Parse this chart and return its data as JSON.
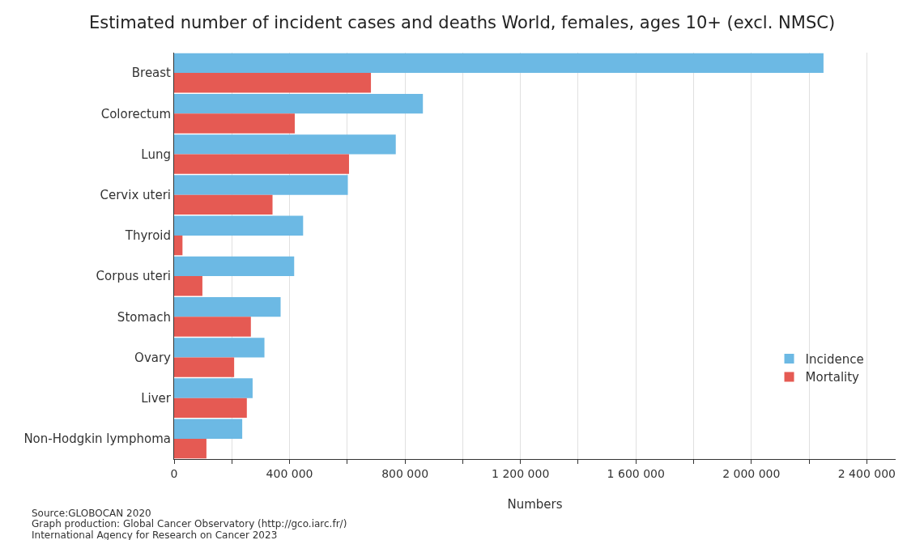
{
  "chart_data": {
    "type": "bar",
    "orientation": "horizontal",
    "title": "Estimated number of incident cases and deaths World, females, ages 10+ (excl. NMSC)",
    "xlabel": "Numbers",
    "categories": [
      "Breast",
      "Colorectum",
      "Lung",
      "Cervix uteri",
      "Thyroid",
      "Corpus uteri",
      "Stomach",
      "Ovary",
      "Liver",
      "Non-Hodgkin lymphoma"
    ],
    "series": [
      {
        "name": "Incidence",
        "color": "#6cb9e4",
        "values": [
          2250000,
          862000,
          768000,
          602000,
          447000,
          416000,
          369000,
          313000,
          272000,
          236000
        ]
      },
      {
        "name": "Mortality",
        "color": "#e55a53",
        "values": [
          682000,
          418000,
          606000,
          341000,
          29000,
          98000,
          266000,
          208000,
          252000,
          112000
        ]
      }
    ],
    "xlim": [
      0,
      2500000
    ],
    "xticks": [
      0,
      {
        "value": 200000,
        "label": null
      },
      {
        "value": 400000,
        "label": "400 000"
      },
      {
        "value": 600000,
        "label": null
      },
      {
        "value": 800000,
        "label": "800 000"
      },
      {
        "value": 1000000,
        "label": null
      },
      {
        "value": 1200000,
        "label": "1 200 000"
      },
      {
        "value": 1400000,
        "label": null
      },
      {
        "value": 1600000,
        "label": "1 600 000"
      },
      {
        "value": 1800000,
        "label": null
      },
      {
        "value": 2000000,
        "label": "2 000 000"
      },
      {
        "value": 2200000,
        "label": null
      },
      {
        "value": 2400000,
        "label": "2 400 000"
      }
    ],
    "grid": "x",
    "legend": "bottom right",
    "annotations": [
      "Source:GLOBOCAN 2020",
      "Graph production: Global Cancer Observatory (http://gco.iarc.fr/)",
      "International Agency for Research on Cancer 2023"
    ]
  }
}
